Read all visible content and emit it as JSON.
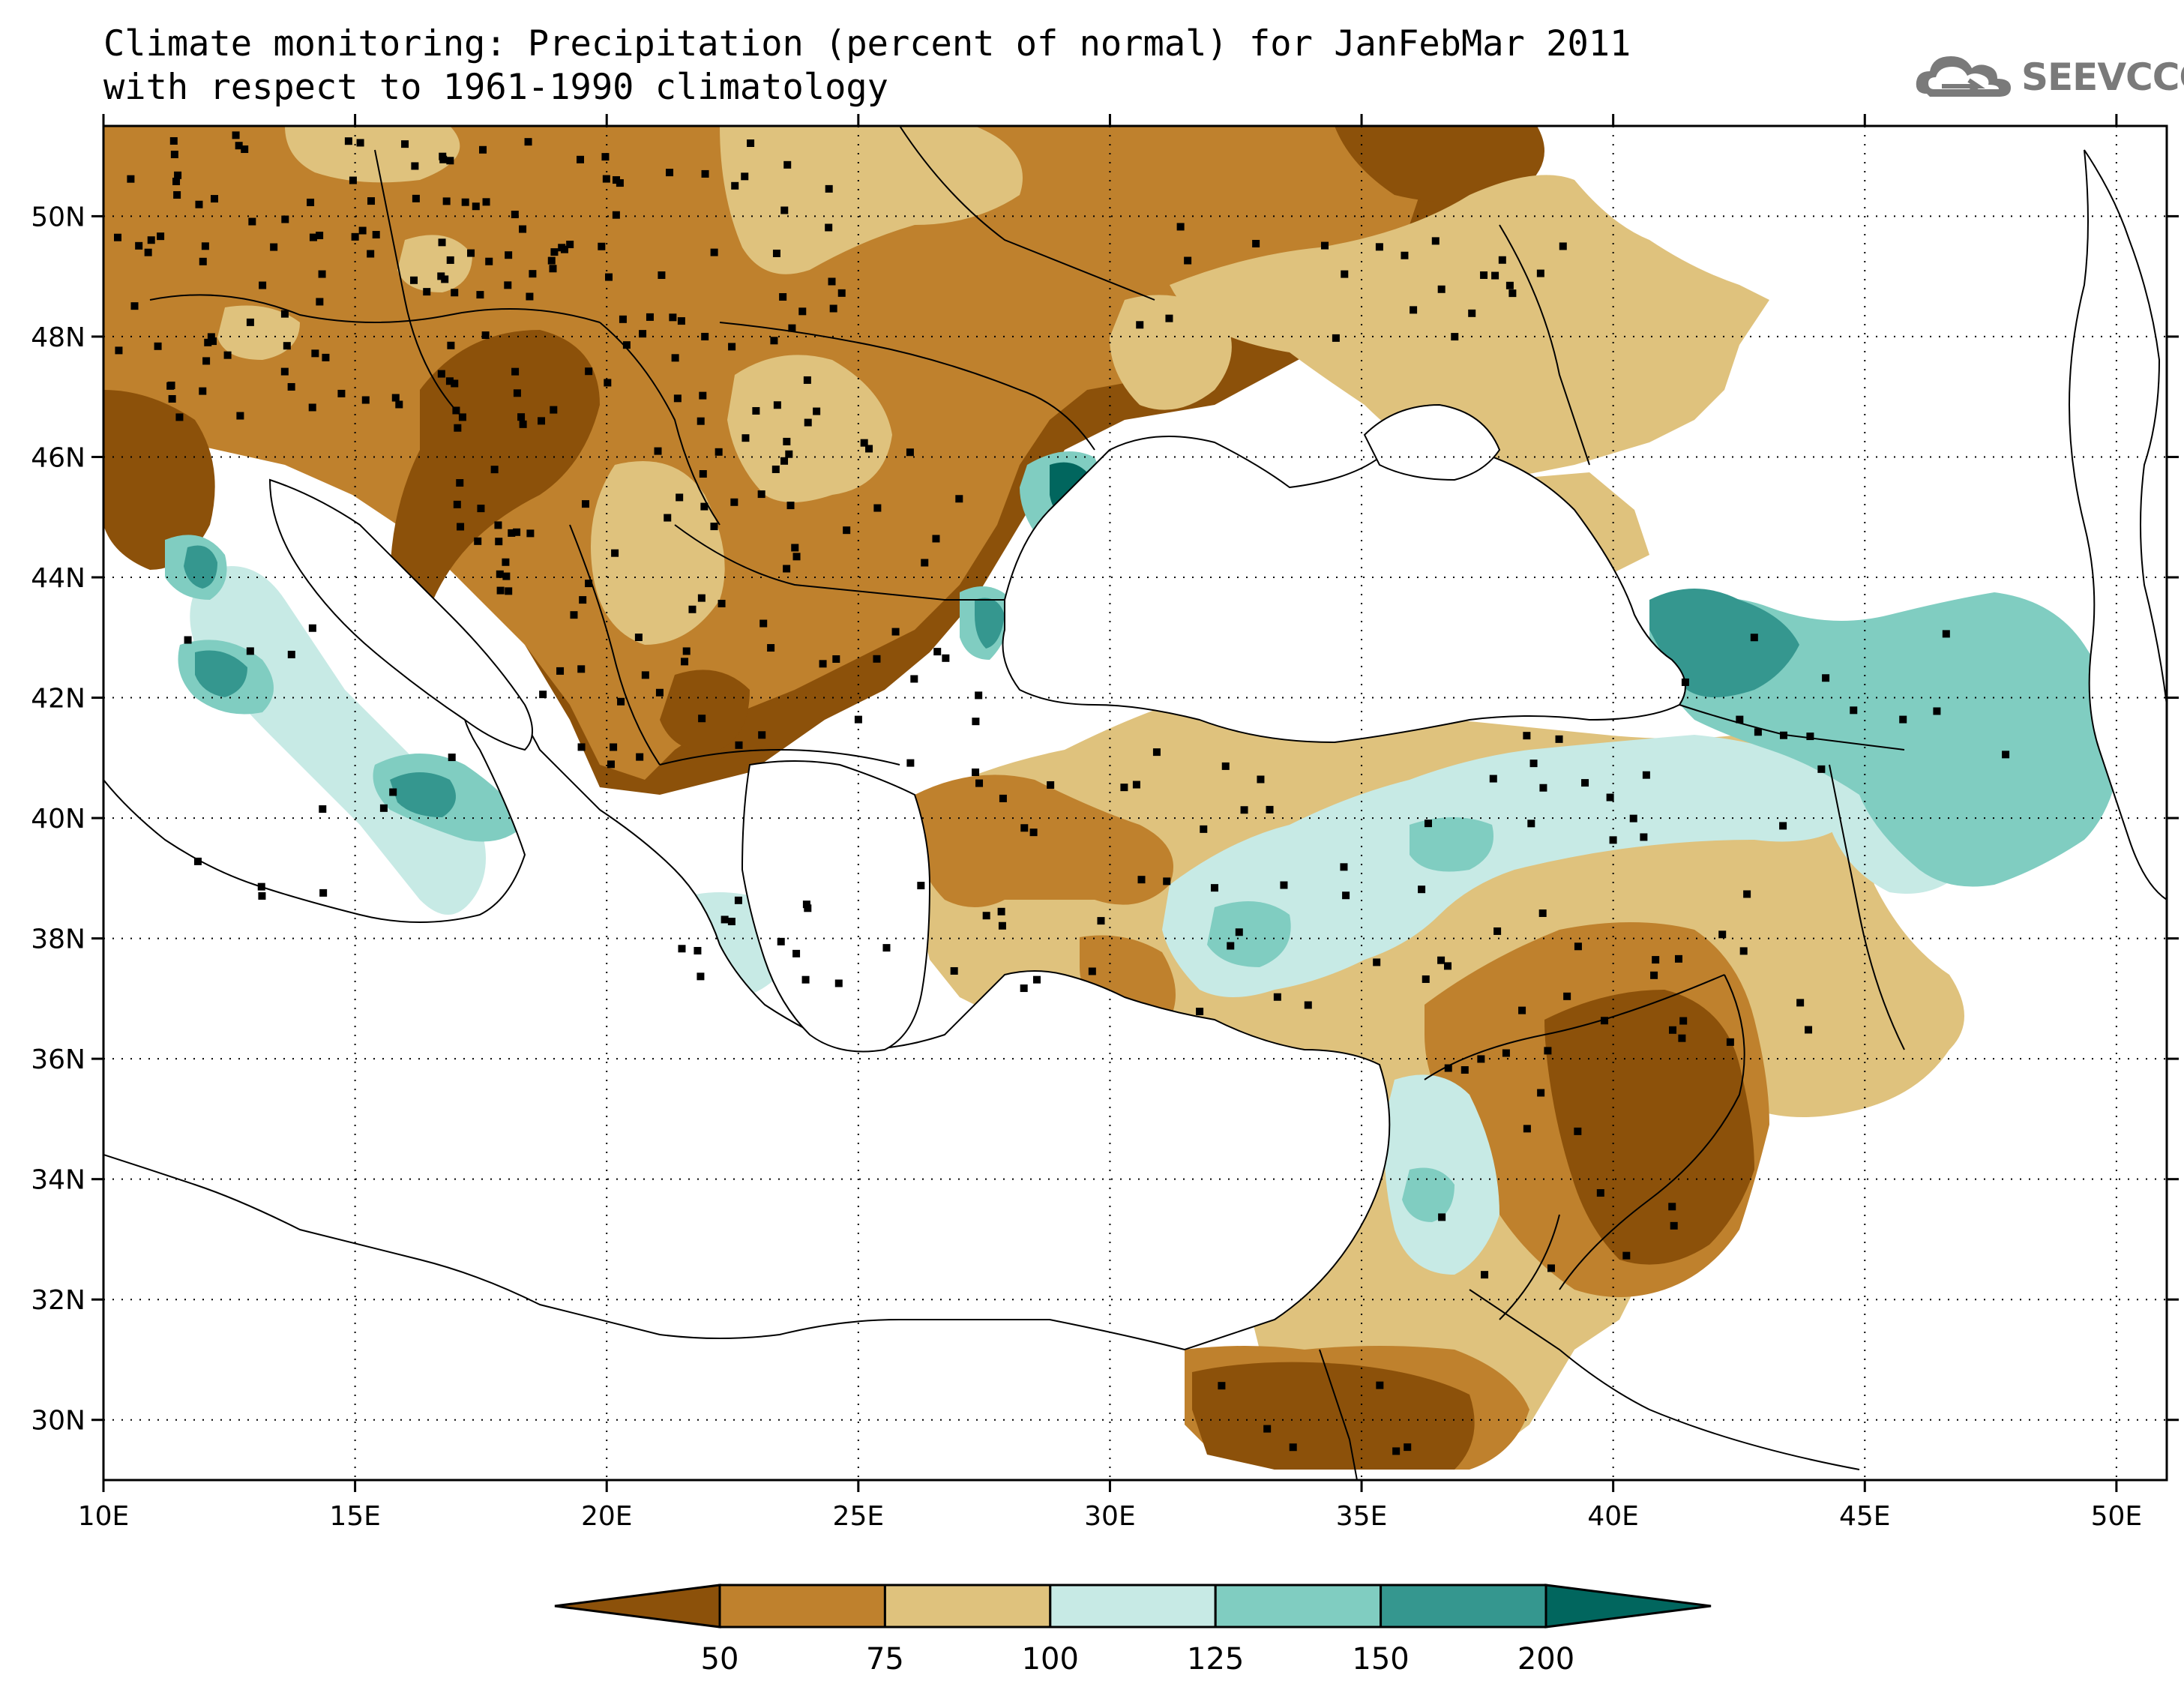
{
  "title": {
    "line1": "Climate monitoring: Precipitation (percent of normal) for JanFebMar 2011",
    "line2": "with respect to 1961-1990 climatology"
  },
  "logo": {
    "text": "SEEVCCC",
    "icon": "cloud-icon"
  },
  "map": {
    "lon_range": [
      10,
      51
    ],
    "lat_range": [
      29,
      51.5
    ],
    "x_ticks": [
      "10E",
      "15E",
      "20E",
      "25E",
      "30E",
      "35E",
      "40E",
      "45E",
      "50E"
    ],
    "y_ticks": [
      "30N",
      "32N",
      "34N",
      "36N",
      "38N",
      "40N",
      "42N",
      "44N",
      "46N",
      "48N",
      "50N"
    ],
    "x_tick_values": [
      10,
      15,
      20,
      25,
      30,
      35,
      40,
      45,
      50
    ],
    "y_tick_values": [
      30,
      32,
      34,
      36,
      38,
      40,
      42,
      44,
      46,
      48,
      50
    ],
    "grid": "dotted",
    "land_color": "#ffffff",
    "sea_color": "#ffffff"
  },
  "legend": {
    "boundaries": [
      "50",
      "75",
      "100",
      "125",
      "150",
      "200"
    ],
    "colors": [
      "#8c510a",
      "#bf812d",
      "#dfc27d",
      "#c7eae5",
      "#80cdc1",
      "#35978f",
      "#01665e"
    ]
  }
}
